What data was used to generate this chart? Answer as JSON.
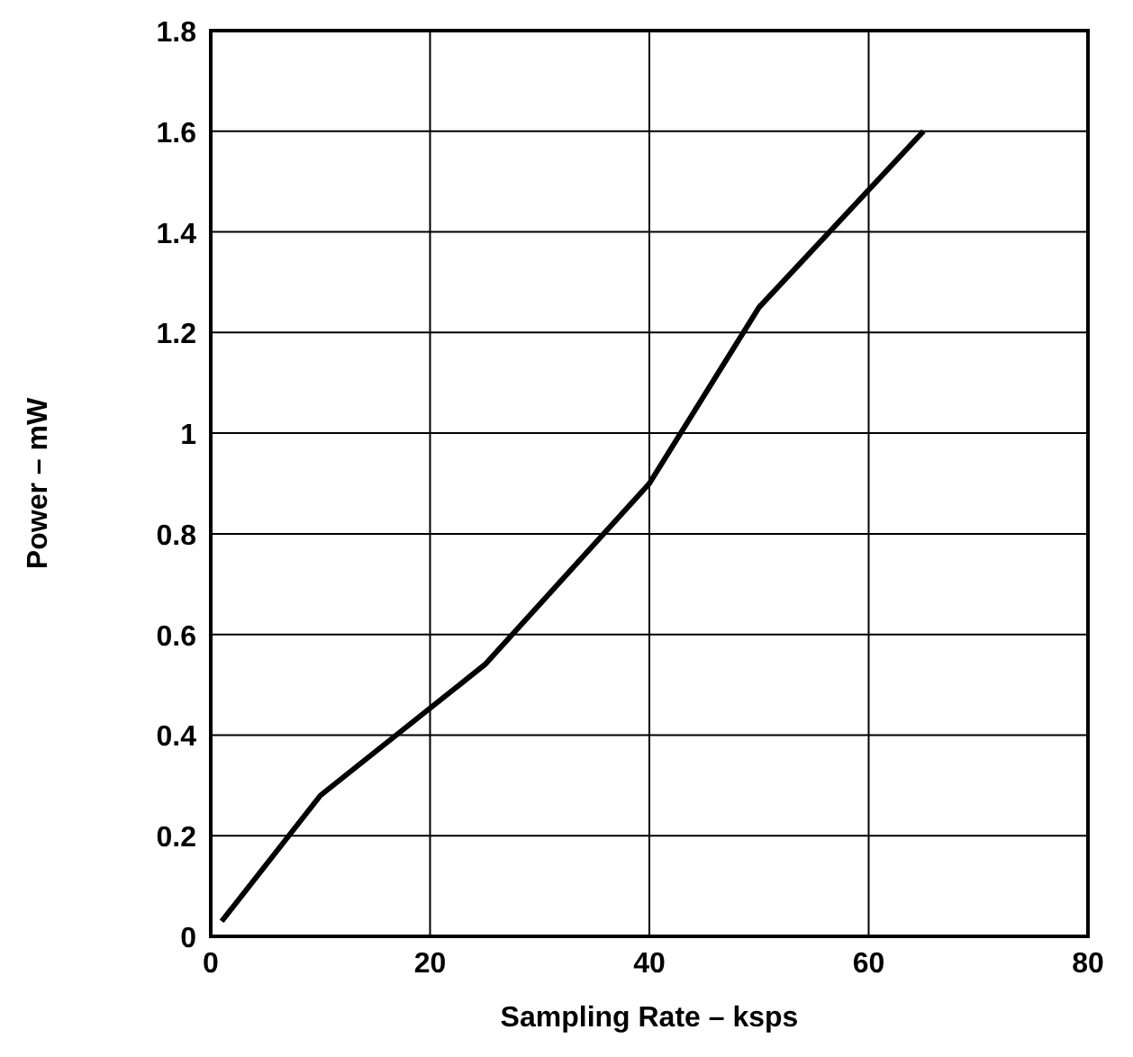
{
  "chart_data": {
    "type": "line",
    "xlabel": "Sampling Rate – ksps",
    "ylabel": "Power – mW",
    "x": [
      1,
      10,
      25,
      40,
      50,
      65
    ],
    "series": [
      {
        "color": "#000000",
        "values": [
          0.03,
          0.28,
          0.54,
          0.9,
          1.25,
          1.6
        ]
      }
    ],
    "xlim": [
      0,
      80
    ],
    "ylim": [
      0,
      1.8
    ],
    "xticks": [
      0,
      20,
      40,
      60,
      80
    ],
    "yticks": [
      0,
      0.2,
      0.4,
      0.6,
      0.8,
      1,
      1.2,
      1.4,
      1.6,
      1.8
    ],
    "grid": true,
    "marker": "none",
    "line_style": "solid"
  }
}
